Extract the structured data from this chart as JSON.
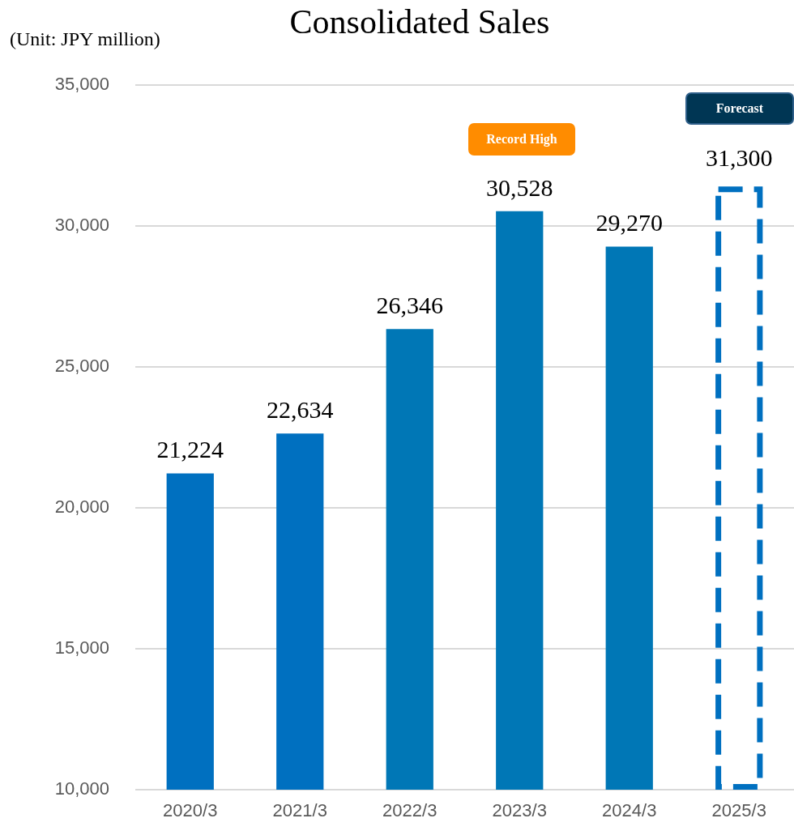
{
  "chart_data": {
    "type": "bar",
    "title": "Consolidated Sales",
    "ylabel": "(Unit: JPY million)",
    "categories": [
      "2020/3",
      "2021/3",
      "2022/3",
      "2023/3",
      "2024/3",
      "2025/3"
    ],
    "series": [
      {
        "colors": [
          "#0070c0",
          "#0070c0",
          "#0077b6",
          "#0077b6",
          "#0077b6",
          null
        ],
        "values": [
          21224,
          22634,
          26346,
          30528,
          29270,
          null
        ],
        "value_labels": [
          "21,224",
          "22,634",
          "26,346",
          "30,528",
          "29,270",
          null
        ]
      },
      {
        "color": "#0070c0",
        "line_style": "dashed",
        "values": [
          null,
          null,
          null,
          null,
          null,
          31300
        ],
        "value_labels": [
          null,
          null,
          null,
          null,
          null,
          "31,300"
        ]
      }
    ],
    "ylim": [
      10000,
      35000
    ],
    "yticks": [
      {
        "value": 10000,
        "label": "10,000"
      },
      {
        "value": 15000,
        "label": "15,000"
      },
      {
        "value": 20000,
        "label": "20,000"
      },
      {
        "value": 25000,
        "label": "25,000"
      },
      {
        "value": 30000,
        "label": "30,000"
      },
      {
        "value": 35000,
        "label": "35,000"
      }
    ],
    "grid": "y",
    "legend": false,
    "annotations": [
      "Record High",
      "Forecast"
    ]
  }
}
